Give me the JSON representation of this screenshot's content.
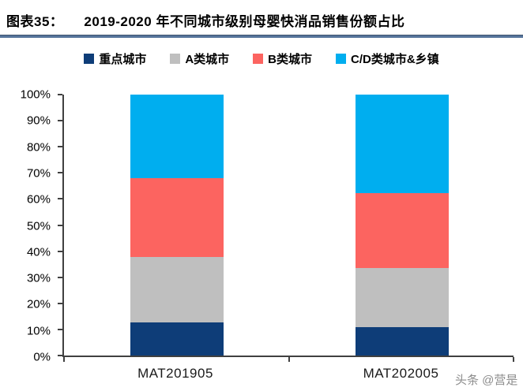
{
  "title": {
    "label": "图表35：",
    "text": "2019-2020 年不同城市级别母婴快消品销售份额占比"
  },
  "watermark": "头条 @营是",
  "colors": {
    "divider": "#56749B",
    "axis": "#404040",
    "watermark": "#8C8C8C",
    "key_city": "#0E3D78",
    "a_city": "#BFBFBF",
    "b_city": "#FC6460",
    "cd_city": "#00AEEF"
  },
  "chart_data": {
    "type": "bar",
    "stacked": true,
    "title": "2019-2020 年不同城市级别母婴快消品销售份额占比",
    "categories": [
      "MAT201905",
      "MAT202005"
    ],
    "series": [
      {
        "name": "重点城市",
        "color": "#0E3D78",
        "values": [
          12.6,
          11.0
        ]
      },
      {
        "name": "A类城市",
        "color": "#BFBFBF",
        "values": [
          25.1,
          22.5
        ]
      },
      {
        "name": "B类城市",
        "color": "#FC6460",
        "values": [
          30.4,
          28.7
        ]
      },
      {
        "name": "C/D类城市&乡镇",
        "color": "#00AEEF",
        "values": [
          31.9,
          37.8
        ]
      }
    ],
    "ylim": [
      0,
      100
    ],
    "ytick_labels": [
      "0%",
      "10%",
      "20%",
      "30%",
      "40%",
      "50%",
      "60%",
      "70%",
      "80%",
      "90%",
      "100%"
    ],
    "xlabel": "",
    "ylabel": "",
    "grid": false,
    "legend_position": "top",
    "unit": "percent"
  }
}
